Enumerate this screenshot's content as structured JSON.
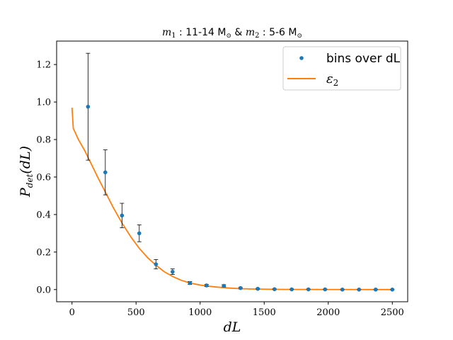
{
  "chart_data": {
    "type": "scatter",
    "title_parts": {
      "m1": "m",
      "m1_sub": "1",
      "m1_text": " : 11-14 M",
      "sun_sub": "⊙",
      "amp": " & ",
      "m2": "m",
      "m2_sub": "2",
      "m2_text": " : 5-6 M"
    },
    "xlabel": "dL",
    "ylabel_main": "P",
    "ylabel_sub": "det",
    "ylabel_arg": "(dL)",
    "xlim": [
      -120,
      2620
    ],
    "ylim": [
      -0.065,
      1.325
    ],
    "xticks": [
      0,
      500,
      1000,
      1500,
      2000,
      2500
    ],
    "xtick_labels": [
      "0",
      "500",
      "1000",
      "1500",
      "2000",
      "2500"
    ],
    "yticks": [
      0.0,
      0.2,
      0.4,
      0.6,
      0.8,
      1.0,
      1.2
    ],
    "ytick_labels": [
      "0.0",
      "0.2",
      "0.4",
      "0.6",
      "0.8",
      "1.0",
      "1.2"
    ],
    "grid": false,
    "legend_position": "top-right",
    "series": [
      {
        "name": "bins over dL",
        "kind": "points_with_errorbars",
        "color": "#1f77b4",
        "x": [
          125,
          260,
          390,
          525,
          655,
          785,
          920,
          1050,
          1185,
          1315,
          1450,
          1580,
          1715,
          1845,
          1975,
          2110,
          2240,
          2370,
          2500
        ],
        "y": [
          0.975,
          0.625,
          0.395,
          0.3,
          0.135,
          0.095,
          0.035,
          0.022,
          0.02,
          0.008,
          0.004,
          0.002,
          0.001,
          0.001,
          0.001,
          0.0,
          0.0,
          0.0,
          0.0
        ],
        "err_low": [
          0.285,
          0.12,
          0.065,
          0.045,
          0.025,
          0.015,
          0.008,
          0.006,
          0.006,
          0.004,
          0.003,
          0.002,
          0.001,
          0.001,
          0.001,
          0.0,
          0.0,
          0.0,
          0.0
        ],
        "err_high": [
          0.285,
          0.12,
          0.065,
          0.045,
          0.025,
          0.015,
          0.008,
          0.006,
          0.006,
          0.004,
          0.003,
          0.002,
          0.001,
          0.001,
          0.001,
          0.0,
          0.0,
          0.0,
          0.0
        ]
      },
      {
        "name_main": "ε",
        "name_sub": "2",
        "kind": "line",
        "color": "#ff7f0e",
        "x": [
          0,
          10,
          50,
          100,
          150,
          200,
          260,
          320,
          390,
          460,
          525,
          590,
          655,
          720,
          785,
          850,
          920,
          1000,
          1050,
          1120,
          1185,
          1250,
          1315,
          1400,
          1500,
          1600,
          1700,
          1800,
          1900,
          2000,
          2100,
          2200,
          2300,
          2400,
          2500
        ],
        "y": [
          0.97,
          0.86,
          0.8,
          0.74,
          0.67,
          0.6,
          0.52,
          0.44,
          0.355,
          0.28,
          0.22,
          0.17,
          0.13,
          0.095,
          0.07,
          0.05,
          0.035,
          0.024,
          0.019,
          0.014,
          0.01,
          0.007,
          0.005,
          0.003,
          0.002,
          0.001,
          0.0007,
          0.0005,
          0.0003,
          0.0002,
          0.0001,
          0.0001,
          0.0,
          0.0,
          0.0
        ]
      }
    ]
  }
}
